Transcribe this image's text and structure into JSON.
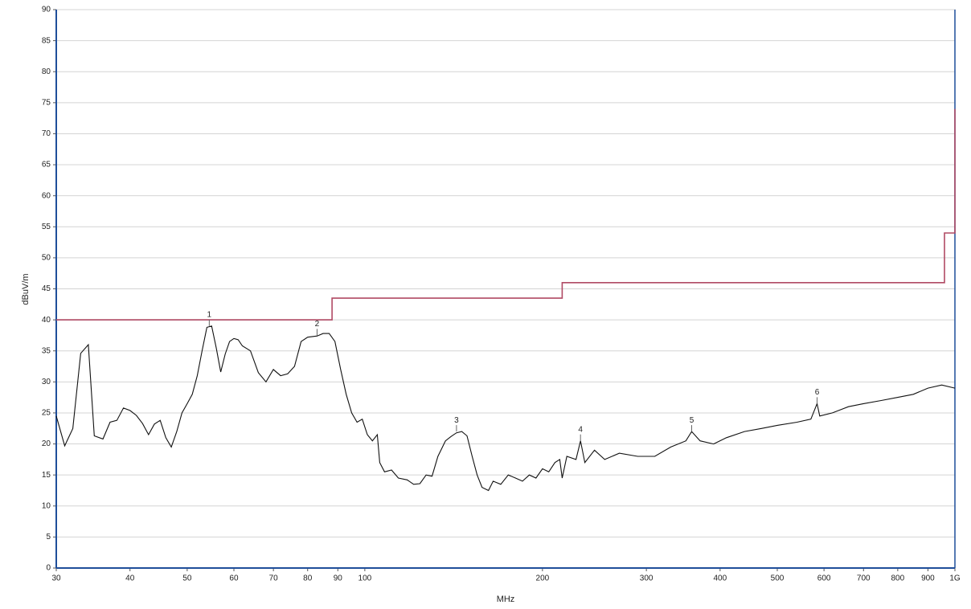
{
  "chart_data": {
    "type": "line",
    "log_x": true,
    "grid": true,
    "xlabel": "MHz",
    "ylabel": "dBuV/m",
    "xlim": [
      30,
      1000
    ],
    "ylim": [
      0,
      90
    ],
    "xticks": [
      30,
      40,
      50,
      60,
      70,
      80,
      90,
      100,
      200,
      300,
      400,
      500,
      600,
      700,
      800,
      900,
      {
        "value": 1000,
        "label": "1G"
      }
    ],
    "yticks": [
      0,
      5,
      10,
      15,
      20,
      25,
      30,
      35,
      40,
      45,
      50,
      55,
      60,
      65,
      70,
      75,
      80,
      85,
      90
    ],
    "series": [
      {
        "color": "#b04a64",
        "x": [
          30,
          88,
          88,
          216,
          216,
          960,
          960,
          1000,
          1000
        ],
        "values": [
          40,
          40,
          43.5,
          43.5,
          46,
          46,
          54,
          54,
          74
        ]
      },
      {
        "color": "#111111",
        "x": [
          30,
          31,
          32,
          33,
          34,
          34.8,
          36,
          37,
          38,
          39,
          40,
          41,
          42,
          43,
          44,
          45,
          46,
          47,
          48,
          49,
          50,
          51,
          52,
          53,
          54,
          55,
          56,
          57,
          58,
          59,
          60,
          61,
          62,
          64,
          66,
          68,
          70,
          72,
          74,
          76,
          78,
          80,
          83,
          85,
          87,
          89,
          91,
          93,
          95,
          97,
          99,
          101,
          103,
          105,
          106,
          108,
          111,
          114,
          118,
          121,
          124,
          127,
          130,
          133,
          137,
          140,
          143,
          146,
          149,
          152,
          155,
          158,
          162,
          165,
          170,
          175,
          180,
          185,
          190,
          195,
          200,
          205,
          210,
          214,
          216,
          220,
          228,
          232,
          236,
          245,
          255,
          270,
          290,
          310,
          330,
          350,
          358,
          370,
          390,
          410,
          440,
          470,
          500,
          540,
          570,
          584,
          590,
          620,
          660,
          700,
          750,
          800,
          850,
          900,
          950,
          1000
        ],
        "values": [
          24.5,
          19.7,
          22.5,
          34.6,
          36,
          21.3,
          20.8,
          23.5,
          23.8,
          25.8,
          25.4,
          24.6,
          23.3,
          21.5,
          23.2,
          23.8,
          21,
          19.5,
          22,
          25,
          26.5,
          28,
          31,
          35,
          38.8,
          39,
          35.5,
          31.6,
          34.5,
          36.5,
          37,
          36.8,
          35.8,
          35,
          31.5,
          30,
          32,
          31,
          31.3,
          32.5,
          36.5,
          37.2,
          37.4,
          37.8,
          37.8,
          36.5,
          32,
          28,
          25,
          23.5,
          24,
          21.5,
          20.5,
          21.5,
          17,
          15.5,
          15.8,
          14.5,
          14.2,
          13.5,
          13.6,
          15,
          14.8,
          18,
          20.5,
          21.2,
          21.8,
          22,
          21.3,
          18,
          15,
          13,
          12.5,
          14,
          13.5,
          15,
          14.5,
          14,
          15,
          14.5,
          16,
          15.5,
          17,
          17.5,
          14.5,
          18,
          17.5,
          20.5,
          17,
          19,
          17.5,
          18.5,
          18,
          18,
          19.5,
          20.5,
          22,
          20.5,
          20,
          21,
          22,
          22.5,
          23,
          23.5,
          24,
          26.5,
          24.5,
          25,
          26,
          26.5,
          27,
          27.5,
          28,
          29,
          29.5,
          29
        ]
      }
    ],
    "markers": [
      {
        "label": "1",
        "x": 54.5,
        "value": 39
      },
      {
        "label": "2",
        "x": 83,
        "value": 37.5
      },
      {
        "label": "3",
        "x": 143,
        "value": 22
      },
      {
        "label": "4",
        "x": 232,
        "value": 20.5
      },
      {
        "label": "5",
        "x": 358,
        "value": 22
      },
      {
        "label": "6",
        "x": 584,
        "value": 26.5
      }
    ]
  }
}
